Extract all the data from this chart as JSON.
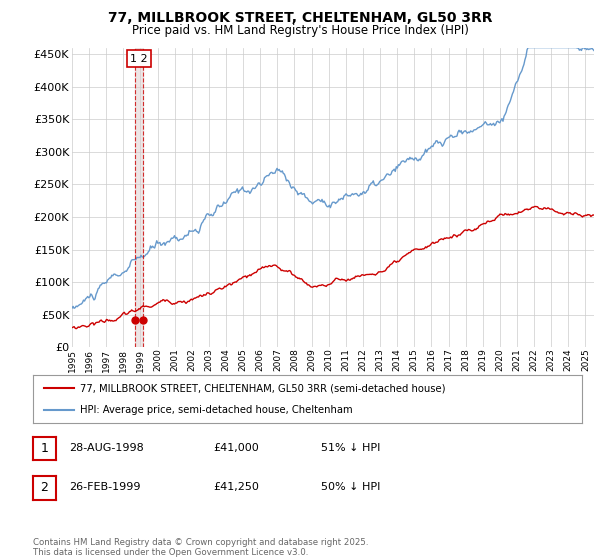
{
  "title": "77, MILLBROOK STREET, CHELTENHAM, GL50 3RR",
  "subtitle": "Price paid vs. HM Land Registry's House Price Index (HPI)",
  "legend_label_red": "77, MILLBROOK STREET, CHELTENHAM, GL50 3RR (semi-detached house)",
  "legend_label_blue": "HPI: Average price, semi-detached house, Cheltenham",
  "footnote": "Contains HM Land Registry data © Crown copyright and database right 2025.\nThis data is licensed under the Open Government Licence v3.0.",
  "table_rows": [
    {
      "num": "1",
      "date": "28-AUG-1998",
      "price": "£41,000",
      "hpi": "51% ↓ HPI"
    },
    {
      "num": "2",
      "date": "26-FEB-1999",
      "price": "£41,250",
      "hpi": "50% ↓ HPI"
    }
  ],
  "purchase_dates": [
    1998.66,
    1999.16
  ],
  "purchase_prices": [
    41000,
    41250
  ],
  "purchase_marker_color": "#cc0000",
  "line_red_color": "#cc0000",
  "line_blue_color": "#6699cc",
  "vline_color": "#cc0000",
  "vline_fill_color": "#ddcccc",
  "ylim": [
    0,
    460000
  ],
  "yticks": [
    0,
    50000,
    100000,
    150000,
    200000,
    250000,
    300000,
    350000,
    400000,
    450000
  ],
  "background_color": "#ffffff",
  "grid_color": "#cccccc",
  "annotation_label": "1 2"
}
